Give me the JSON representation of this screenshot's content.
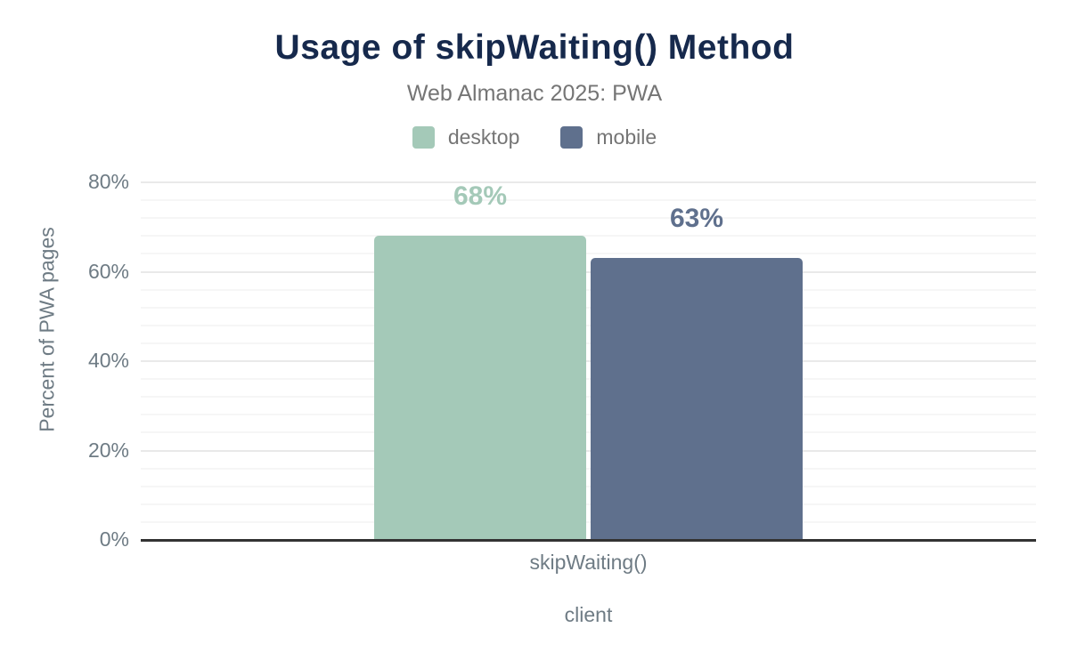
{
  "header": {
    "title": "Usage of skipWaiting() Method",
    "subtitle": "Web Almanac 2025: PWA"
  },
  "legend": [
    {
      "label": "desktop",
      "color": "#a4c9b8"
    },
    {
      "label": "mobile",
      "color": "#5f708d"
    }
  ],
  "chart_data": {
    "type": "bar",
    "title": "Usage of skipWaiting() Method",
    "subtitle": "Web Almanac 2025: PWA",
    "categories": [
      "skipWaiting()"
    ],
    "series": [
      {
        "name": "desktop",
        "values": [
          68
        ],
        "color": "#a4c9b8",
        "value_label": "68%"
      },
      {
        "name": "mobile",
        "values": [
          63
        ],
        "color": "#5f708d",
        "value_label": "63%"
      }
    ],
    "xlabel": "client",
    "ylabel": "Percent of PWA pages",
    "ylim": [
      0,
      80
    ],
    "yticks": [
      0,
      20,
      40,
      60,
      80
    ],
    "ytick_labels": [
      "0%",
      "20%",
      "40%",
      "60%",
      "80%"
    ],
    "grid": "horizontal major every 20%, minor every 4%",
    "legend_position": "top center"
  },
  "colors": {
    "title": "#16294c",
    "subtitle_text": "#757575",
    "axis_text": "#6e7b84",
    "axis_line": "#333333",
    "major_gridline": "#e9e9e9",
    "minor_gridline": "#f6f6f6",
    "background": "#ffffff"
  }
}
